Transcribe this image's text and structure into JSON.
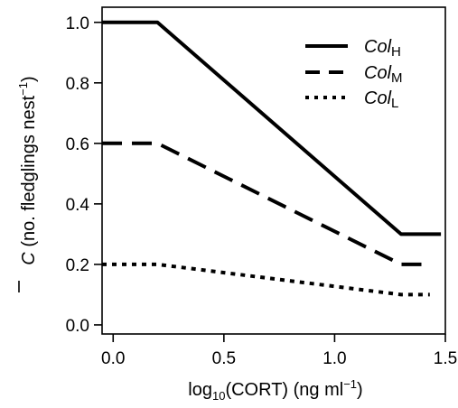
{
  "chart_data": {
    "type": "line",
    "title": "",
    "xlabel": {
      "prefix": "log",
      "subscript": "10",
      "middle": "(CORT) (ng ml",
      "superscript": "−1",
      "suffix": ")"
    },
    "ylabel": {
      "symbol": "C",
      "text": " (no. fledglings nest",
      "superscript": "−1",
      "suffix": ")"
    },
    "xlim": [
      -0.05,
      1.5
    ],
    "ylim": [
      -0.03,
      1.05
    ],
    "x_ticks": [
      0.0,
      0.5,
      1.0,
      1.5
    ],
    "x_tick_labels": [
      "0.0",
      "0.5",
      "1.0",
      "1.5"
    ],
    "y_ticks": [
      0.0,
      0.2,
      0.4,
      0.6,
      0.8,
      1.0
    ],
    "y_tick_labels": [
      "0.0",
      "0.2",
      "0.4",
      "0.6",
      "0.8",
      "1.0"
    ],
    "grid": false,
    "legend_position": "top-right",
    "series": [
      {
        "name": "Col",
        "subscript": "H",
        "style": "solid",
        "x": [
          -0.05,
          0.2,
          1.3,
          1.48
        ],
        "y": [
          1.0,
          1.0,
          0.3,
          0.3
        ]
      },
      {
        "name": "Col",
        "subscript": "M",
        "style": "dashed",
        "x": [
          -0.05,
          0.2,
          1.3,
          1.43
        ],
        "y": [
          0.6,
          0.6,
          0.2,
          0.2
        ]
      },
      {
        "name": "Col",
        "subscript": "L",
        "style": "dotted",
        "x": [
          -0.05,
          0.2,
          1.3,
          1.43
        ],
        "y": [
          0.2,
          0.2,
          0.1,
          0.1
        ]
      }
    ]
  }
}
